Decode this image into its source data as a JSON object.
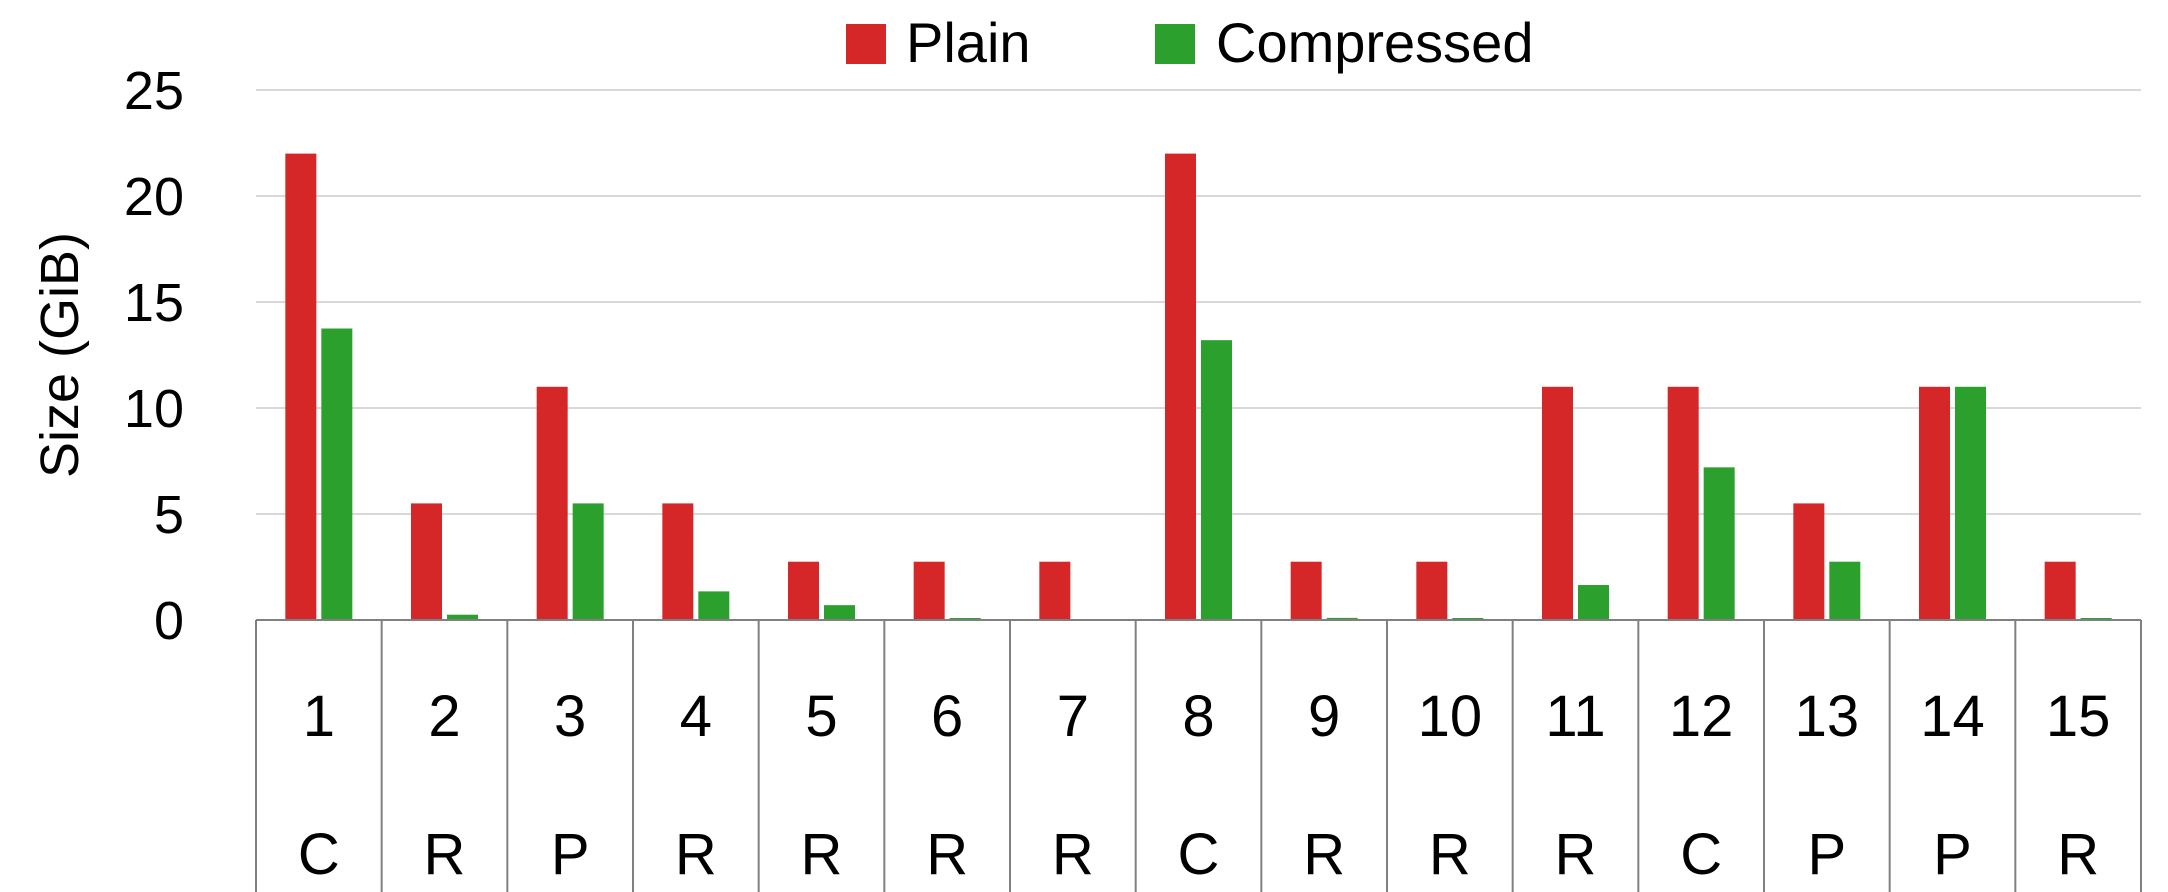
{
  "chart_data": {
    "type": "bar",
    "title": "",
    "xlabel": "",
    "ylabel": "Size (GiB)",
    "ylim": [
      0,
      25
    ],
    "yticks": [
      0,
      5,
      10,
      15,
      20,
      25
    ],
    "grid": true,
    "legend_position": "top-center",
    "categories": [
      "1",
      "2",
      "3",
      "4",
      "5",
      "6",
      "7",
      "8",
      "9",
      "10",
      "11",
      "12",
      "13",
      "14",
      "15"
    ],
    "category_groups": [
      "C",
      "R",
      "P",
      "R",
      "R",
      "R",
      "R",
      "C",
      "R",
      "R",
      "R",
      "C",
      "P",
      "P",
      "R"
    ],
    "series": [
      {
        "name": "Plain",
        "color": "#d62728",
        "values": [
          22,
          5.5,
          11,
          5.5,
          2.75,
          2.75,
          2.75,
          22,
          2.75,
          2.75,
          11,
          11,
          5.5,
          11,
          2.75
        ]
      },
      {
        "name": "Compressed",
        "color": "#2ca02c",
        "values": [
          13.75,
          0.25,
          5.5,
          1.35,
          0.7,
          0.05,
          0,
          13.2,
          0.1,
          0.05,
          1.65,
          7.2,
          2.75,
          11,
          0.05
        ]
      }
    ]
  }
}
